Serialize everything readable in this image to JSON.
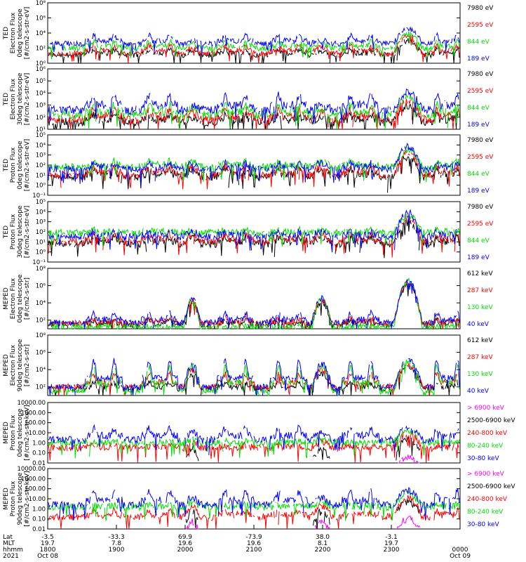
{
  "chart_data": {
    "type": "line",
    "time_axis": {
      "row_labels": [
        "Lat",
        "MLT",
        "hhmm",
        "2021"
      ],
      "ticks": [
        {
          "lat": "-3.5",
          "mlt": "19.7",
          "hhmm": "1800",
          "date": "Oct 08"
        },
        {
          "lat": "-33.3",
          "mlt": "7.8",
          "hhmm": "1900",
          "date": ""
        },
        {
          "lat": "69.9",
          "mlt": "19.6",
          "hhmm": "2000",
          "date": ""
        },
        {
          "lat": "-73.9",
          "mlt": "19.6",
          "hhmm": "2100",
          "date": ""
        },
        {
          "lat": "38.0",
          "mlt": "8.1",
          "hhmm": "2200",
          "date": ""
        },
        {
          "lat": "-3.1",
          "mlt": "19.7",
          "hhmm": "2300",
          "date": ""
        },
        {
          "lat": "",
          "mlt": "",
          "hhmm": "0000",
          "date": "Oct 09"
        }
      ]
    },
    "passes": [
      {
        "type": "polar",
        "center": 0.135,
        "width": 0.09
      },
      {
        "type": "polar",
        "center": 0.27,
        "width": 0.09
      },
      {
        "type": "dip",
        "center": 0.35,
        "width": 0.04
      },
      {
        "type": "polar",
        "center": 0.455,
        "width": 0.09
      },
      {
        "type": "polar",
        "center": 0.585,
        "width": 0.09
      },
      {
        "type": "dip",
        "center": 0.665,
        "width": 0.05
      },
      {
        "type": "polar",
        "center": 0.76,
        "width": 0.09
      },
      {
        "type": "saa",
        "center": 0.875,
        "width": 0.07
      },
      {
        "type": "polar",
        "center": 0.97,
        "width": 0.06
      }
    ],
    "panels": [
      {
        "ylabel": [
          "TED",
          "Electron Flux",
          "0deg telescope",
          "[#/cm2-s-str-eV]"
        ],
        "yscale": "log",
        "ylim_exp": [
          0,
          8
        ],
        "yticks": [
          {
            "e": 0,
            "t": "10⁰"
          },
          {
            "e": 2,
            "t": "10²"
          },
          {
            "e": 4,
            "t": "10⁴"
          },
          {
            "e": 6,
            "t": "10⁶"
          },
          {
            "e": 8,
            "t": "10⁸"
          }
        ],
        "legend": [
          {
            "label": "7980 eV",
            "color": "#000000"
          },
          {
            "label": "2595 eV",
            "color": "#ff0000"
          },
          {
            "label": "844 eV",
            "color": "#00dd00"
          },
          {
            "label": "189 eV",
            "color": "#0000ff"
          }
        ],
        "series": [
          {
            "name": "7980 eV",
            "color": "#000000",
            "base": 1.1,
            "polar": 1.8,
            "saa": 3.0,
            "dip": 1.6
          },
          {
            "name": "2595 eV",
            "color": "#ff0000",
            "base": 1.3,
            "polar": 2.4,
            "saa": 3.6,
            "dip": 2.1
          },
          {
            "name": "844 eV",
            "color": "#00dd00",
            "base": 2.0,
            "polar": 2.9,
            "saa": 4.0,
            "dip": 2.6
          },
          {
            "name": "189 eV",
            "color": "#0000ff",
            "base": 2.6,
            "polar": 3.7,
            "saa": 4.5,
            "dip": 3.0
          }
        ]
      },
      {
        "ylabel": [
          "TED",
          "Electron Flux",
          "30deg telescope",
          "[#/cm2-s-str-eV]"
        ],
        "yscale": "log",
        "ylim_exp": [
          1,
          6
        ],
        "yticks": [
          {
            "e": 1,
            "t": "10¹"
          },
          {
            "e": 2,
            "t": "10²"
          },
          {
            "e": 3,
            "t": "10³"
          },
          {
            "e": 4,
            "t": "10⁴"
          },
          {
            "e": 5,
            "t": "10⁵"
          },
          {
            "e": 6,
            "t": "10⁶"
          }
        ],
        "legend": [
          {
            "label": "7980 eV",
            "color": "#000000"
          },
          {
            "label": "2595 eV",
            "color": "#ff0000"
          },
          {
            "label": "844 eV",
            "color": "#00dd00"
          },
          {
            "label": "189 eV",
            "color": "#0000ff"
          }
        ],
        "series": [
          {
            "name": "7980 eV",
            "color": "#000000",
            "base": 1.6,
            "polar": 2.2,
            "saa": 2.9,
            "dip": 2.0
          },
          {
            "name": "2595 eV",
            "color": "#ff0000",
            "base": 1.8,
            "polar": 2.6,
            "saa": 3.3,
            "dip": 2.4
          },
          {
            "name": "844 eV",
            "color": "#00dd00",
            "base": 2.2,
            "polar": 3.0,
            "saa": 3.6,
            "dip": 2.7
          },
          {
            "name": "189 eV",
            "color": "#0000ff",
            "base": 2.6,
            "polar": 3.8,
            "saa": 4.0,
            "dip": 3.0
          }
        ]
      },
      {
        "ylabel": [
          "TED",
          "Proton Flux",
          "0deg telescope",
          "[#/cm2-s-str-eV]"
        ],
        "yscale": "log",
        "ylim_exp": [
          -1,
          5
        ],
        "yticks": [
          {
            "e": -1,
            "t": "10⁻¹"
          },
          {
            "e": 0,
            "t": "10⁰"
          },
          {
            "e": 1,
            "t": "10¹"
          },
          {
            "e": 2,
            "t": "10²"
          },
          {
            "e": 3,
            "t": "10³"
          },
          {
            "e": 4,
            "t": "10⁴"
          },
          {
            "e": 5,
            "t": "10⁵"
          }
        ],
        "legend": [
          {
            "label": "7980 eV",
            "color": "#000000"
          },
          {
            "label": "2595 eV",
            "color": "#ff0000"
          },
          {
            "label": "844 eV",
            "color": "#00dd00"
          },
          {
            "label": "189 eV",
            "color": "#0000ff"
          }
        ],
        "series": [
          {
            "name": "7980 eV",
            "color": "#000000",
            "base": 0.8,
            "polar": 1.6,
            "saa": 2.8,
            "dip": 1.5
          },
          {
            "name": "2595 eV",
            "color": "#ff0000",
            "base": 1.0,
            "polar": 1.9,
            "saa": 3.2,
            "dip": 1.8
          },
          {
            "name": "844 eV",
            "color": "#00dd00",
            "base": 1.8,
            "polar": 2.4,
            "saa": 3.5,
            "dip": 2.3
          },
          {
            "name": "189 eV",
            "color": "#0000ff",
            "base": 1.6,
            "polar": 2.2,
            "saa": 3.8,
            "dip": 2.2
          }
        ]
      },
      {
        "ylabel": [
          "TED",
          "Proton Flux",
          "30deg telescope",
          "[#/cm2-s-str-eV]"
        ],
        "yscale": "log",
        "ylim_exp": [
          -1,
          5
        ],
        "yticks": [
          {
            "e": -1,
            "t": "10⁻¹"
          },
          {
            "e": 0,
            "t": "10⁰"
          },
          {
            "e": 1,
            "t": "10¹"
          },
          {
            "e": 2,
            "t": "10²"
          },
          {
            "e": 3,
            "t": "10³"
          },
          {
            "e": 4,
            "t": "10⁴"
          },
          {
            "e": 5,
            "t": "10⁵"
          }
        ],
        "legend": [
          {
            "label": "7980 eV",
            "color": "#000000"
          },
          {
            "label": "2595 eV",
            "color": "#ff0000"
          },
          {
            "label": "844 eV",
            "color": "#00dd00"
          },
          {
            "label": "189 eV",
            "color": "#0000ff"
          }
        ],
        "series": [
          {
            "name": "7980 eV",
            "color": "#000000",
            "base": 0.8,
            "polar": 1.5,
            "saa": 2.9,
            "dip": 1.4
          },
          {
            "name": "2595 eV",
            "color": "#ff0000",
            "base": 1.0,
            "polar": 1.8,
            "saa": 3.3,
            "dip": 1.7
          },
          {
            "name": "844 eV",
            "color": "#00dd00",
            "base": 1.9,
            "polar": 2.2,
            "saa": 3.6,
            "dip": 2.1
          },
          {
            "name": "189 eV",
            "color": "#0000ff",
            "base": 1.5,
            "polar": 2.0,
            "saa": 3.9,
            "dip": 2.0
          }
        ]
      },
      {
        "ylabel": [
          "MEPED",
          "Electron Flux",
          "0deg telescope",
          "[#/cm2-s-str]"
        ],
        "yscale": "log",
        "ylim_exp": [
          1,
          8
        ],
        "yticks": [
          {
            "e": 2,
            "t": "10²"
          },
          {
            "e": 4,
            "t": "10⁴"
          },
          {
            "e": 6,
            "t": "10⁶"
          },
          {
            "e": 8,
            "t": "10⁸"
          }
        ],
        "legend": [
          {
            "label": "612 keV",
            "color": "#000000"
          },
          {
            "label": "287 keV",
            "color": "#ff0000"
          },
          {
            "label": "130 keV",
            "color": "#00dd00"
          },
          {
            "label": "40 keV",
            "color": "#0000ff"
          }
        ],
        "series": [
          {
            "name": "612 keV",
            "color": "#000000",
            "base": 1.5,
            "polar": 2.0,
            "saa": 6.2,
            "dip": 4.0
          },
          {
            "name": "287 keV",
            "color": "#ff0000",
            "base": 1.6,
            "polar": 2.2,
            "saa": 6.4,
            "dip": 4.3
          },
          {
            "name": "130 keV",
            "color": "#00dd00",
            "base": 1.25,
            "polar": 1.3,
            "saa": 6.5,
            "dip": 4.4
          },
          {
            "name": "40 keV",
            "color": "#0000ff",
            "base": 1.7,
            "polar": 2.8,
            "saa": 6.6,
            "dip": 4.5
          }
        ]
      },
      {
        "ylabel": [
          "MEPED",
          "Electron Flux",
          "90deg telescope",
          "[#/cm2-s-str]"
        ],
        "yscale": "log",
        "ylim_exp": [
          1,
          8
        ],
        "yticks": [
          {
            "e": 2,
            "t": "10²"
          },
          {
            "e": 4,
            "t": "10⁴"
          },
          {
            "e": 6,
            "t": "10⁶"
          },
          {
            "e": 8,
            "t": "10⁸"
          }
        ],
        "legend": [
          {
            "label": "612 keV",
            "color": "#000000"
          },
          {
            "label": "287 keV",
            "color": "#ff0000"
          },
          {
            "label": "130 keV",
            "color": "#00dd00"
          },
          {
            "label": "40 keV",
            "color": "#0000ff"
          }
        ],
        "series": [
          {
            "name": "612 keV",
            "color": "#000000",
            "base": 1.8,
            "polar": 2.5,
            "saa": 4.3,
            "dip": 3.5
          },
          {
            "name": "287 keV",
            "color": "#ff0000",
            "base": 2.0,
            "polar": 3.5,
            "saa": 4.6,
            "dip": 4.0
          },
          {
            "name": "130 keV",
            "color": "#00dd00",
            "base": 1.5,
            "polar": 4.3,
            "saa": 4.9,
            "dip": 4.4
          },
          {
            "name": "40 keV",
            "color": "#0000ff",
            "base": 2.0,
            "polar": 5.0,
            "saa": 5.3,
            "dip": 4.7
          }
        ]
      },
      {
        "ylabel": [
          "MEPED",
          "Proton Flux",
          "0deg telescope",
          "[#/cm2-s-str-keV]"
        ],
        "yscale": "log",
        "ylim_exp": [
          -2,
          4
        ],
        "yticks": [
          {
            "e": -2,
            "t": "0.01"
          },
          {
            "e": -1,
            "t": "0.10"
          },
          {
            "e": 0,
            "t": "1.00"
          },
          {
            "e": 1,
            "t": "10.00"
          },
          {
            "e": 2,
            "t": "100.00"
          },
          {
            "e": 3,
            "t": "1000.00"
          },
          {
            "e": 4,
            "t": "10000.00"
          }
        ],
        "legend": [
          {
            "label": "> 6900 keV",
            "color": "#ff00ff"
          },
          {
            "label": "2500-6900 keV",
            "color": "#000000"
          },
          {
            "label": "240-800 keV",
            "color": "#ff0000"
          },
          {
            "label": "80-240 keV",
            "color": "#00dd00"
          },
          {
            "label": "30-80 keV",
            "color": "#0000ff"
          }
        ],
        "series": [
          {
            "name": "> 6900 keV",
            "color": "#ff00ff",
            "base": null,
            "polar": null,
            "saa": -1.4,
            "dip": null
          },
          {
            "name": "2500-6900 keV",
            "color": "#000000",
            "base": null,
            "polar": null,
            "saa": 0.4,
            "dip": -0.6
          },
          {
            "name": "240-800 keV",
            "color": "#ff0000",
            "base": -0.5,
            "polar": -0.3,
            "saa": 0.9,
            "dip": 0.1
          },
          {
            "name": "80-240 keV",
            "color": "#00dd00",
            "base": 0.0,
            "polar": 0.1,
            "saa": 1.2,
            "dip": 0.3
          },
          {
            "name": "30-80 keV",
            "color": "#0000ff",
            "base": 0.3,
            "polar": 1.5,
            "saa": 1.4,
            "dip": 1.0
          }
        ]
      },
      {
        "ylabel": [
          "MEPED",
          "Proton Flux",
          "90deg telescope",
          "[#/cm2-s-str-keV]"
        ],
        "yscale": "log",
        "ylim_exp": [
          -2,
          4
        ],
        "yticks": [
          {
            "e": -2,
            "t": "0.01"
          },
          {
            "e": -1,
            "t": "0.10"
          },
          {
            "e": 0,
            "t": "1.00"
          },
          {
            "e": 1,
            "t": "10.00"
          },
          {
            "e": 2,
            "t": "100.00"
          },
          {
            "e": 3,
            "t": "1000.00"
          },
          {
            "e": 4,
            "t": "10000.00"
          }
        ],
        "legend": [
          {
            "label": "> 6900 keV",
            "color": "#ff00ff"
          },
          {
            "label": "2500-6900 keV",
            "color": "#000000"
          },
          {
            "label": "240-800 keV",
            "color": "#ff0000"
          },
          {
            "label": "80-240 keV",
            "color": "#00dd00"
          },
          {
            "label": "30-80 keV",
            "color": "#0000ff"
          }
        ],
        "series": [
          {
            "name": "> 6900 keV",
            "color": "#ff00ff",
            "base": null,
            "polar": null,
            "saa": -1.0,
            "dip": -1.3
          },
          {
            "name": "2500-6900 keV",
            "color": "#000000",
            "base": null,
            "polar": null,
            "saa": 0.7,
            "dip": -0.3
          },
          {
            "name": "240-800 keV",
            "color": "#ff0000",
            "base": -0.8,
            "polar": -0.2,
            "saa": 1.1,
            "dip": 0.3
          },
          {
            "name": "80-240 keV",
            "color": "#00dd00",
            "base": 0.2,
            "polar": 0.4,
            "saa": 1.5,
            "dip": 0.6
          },
          {
            "name": "30-80 keV",
            "color": "#0000ff",
            "base": 0.4,
            "polar": 1.7,
            "saa": 1.8,
            "dip": 1.1
          }
        ]
      }
    ]
  }
}
